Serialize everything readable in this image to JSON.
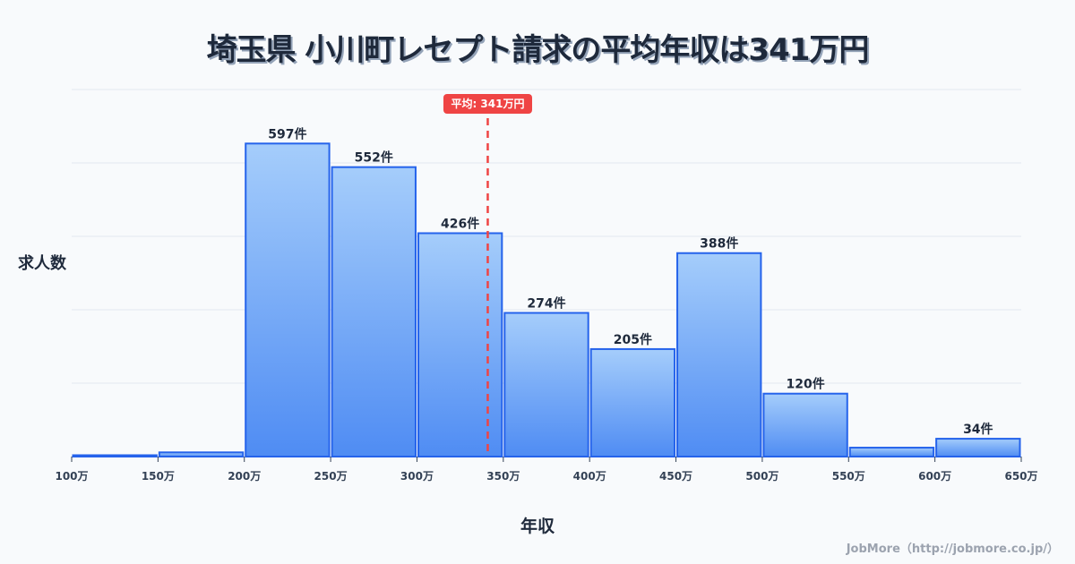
{
  "title": "埼玉県 小川町レセプト請求の平均年収は341万円",
  "y_axis_label": "求人数",
  "x_axis_label": "年収",
  "credit": "JobMore（http://jobmore.co.jp/）",
  "mean_badge": "平均: 341万円",
  "colors": {
    "bar_top": "#a5cdfb",
    "bar_bottom": "#4f8cf3",
    "bar_stroke": "#2563eb",
    "mean_line": "#ef4444",
    "grid": "#e2e8f0",
    "text": "#1e293b"
  },
  "chart_data": {
    "type": "bar",
    "title": "埼玉県 小川町レセプト請求の平均年収は341万円",
    "xlabel": "年収",
    "ylabel": "求人数",
    "tick_labels": [
      "100万",
      "150万",
      "200万",
      "250万",
      "300万",
      "350万",
      "400万",
      "450万",
      "500万",
      "550万",
      "600万",
      "650万"
    ],
    "categories": [
      "100-150万",
      "150-200万",
      "200-250万",
      "250-300万",
      "300-350万",
      "350-400万",
      "400-450万",
      "450-500万",
      "500-550万",
      "550-600万",
      "600-650万"
    ],
    "values": [
      2,
      8,
      597,
      552,
      426,
      274,
      205,
      388,
      120,
      17,
      34
    ],
    "value_labels": [
      "",
      "",
      "597件",
      "552件",
      "426件",
      "274件",
      "205件",
      "388件",
      "120件",
      "",
      "34件"
    ],
    "mean": 341,
    "mean_label": "平均: 341万円",
    "ylim": [
      0,
      700
    ],
    "grid": true,
    "legend": "none"
  }
}
